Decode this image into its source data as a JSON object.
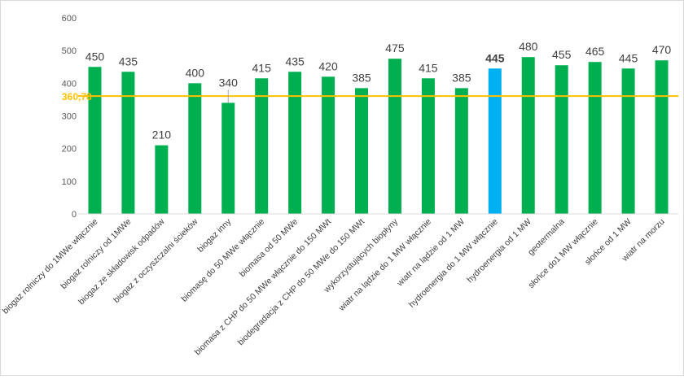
{
  "chart_data": {
    "type": "bar",
    "title": "",
    "xlabel": "",
    "ylabel": "",
    "ylim": [
      0,
      600
    ],
    "yticks": [
      0,
      100,
      200,
      300,
      400,
      500,
      600
    ],
    "grid": false,
    "legend": "none",
    "categories": [
      "biogaz rolniczy do 1MWe włącznie",
      "biogaz rolniczy od 1MWe",
      "biogaz ze składowisk odpadów",
      "biogaz z oczyszczalni ścieków",
      "biogaz inny",
      "biomasę do 50 MWe włącznie",
      "biomasa od 50 MWe",
      "biomasa z CHP do 50 MWe włącznie do 150 MWt",
      "biodegradacja z CHP  do 50 MWe do 150 MWt",
      "wykorzystujących biopłyny",
      "wiatr na lądzie do 1 MW włącznie",
      "wiatr na lądzie od 1 MW",
      "hydroenergia do 1 MW włącznie",
      "hydroenergia od 1 MW",
      "geotermalna",
      "słońce do1 MW włącznie",
      "słońce od 1 MW",
      "wiatr na morzu"
    ],
    "values": [
      450,
      435,
      210,
      400,
      340,
      415,
      435,
      420,
      385,
      475,
      415,
      385,
      445,
      480,
      455,
      465,
      445,
      470
    ],
    "data_labels": [
      "450",
      "435",
      "210",
      "400",
      "340",
      "415",
      "435",
      "420",
      "385",
      "475",
      "415",
      "385",
      "445",
      "480",
      "455",
      "465",
      "445",
      "470"
    ],
    "highlight_index": 12,
    "reference_line": {
      "value": 360.78,
      "label": "360,78"
    },
    "colors": {
      "bar": "#00b050",
      "highlight_bar": "#00b0f0",
      "highlight_label": "#00b0f0",
      "reference_line": "#ffc000",
      "reference_label": "#ffc000",
      "label_text": "#404040",
      "tick_text": "#595959",
      "axis": "#d9d9d9"
    }
  }
}
